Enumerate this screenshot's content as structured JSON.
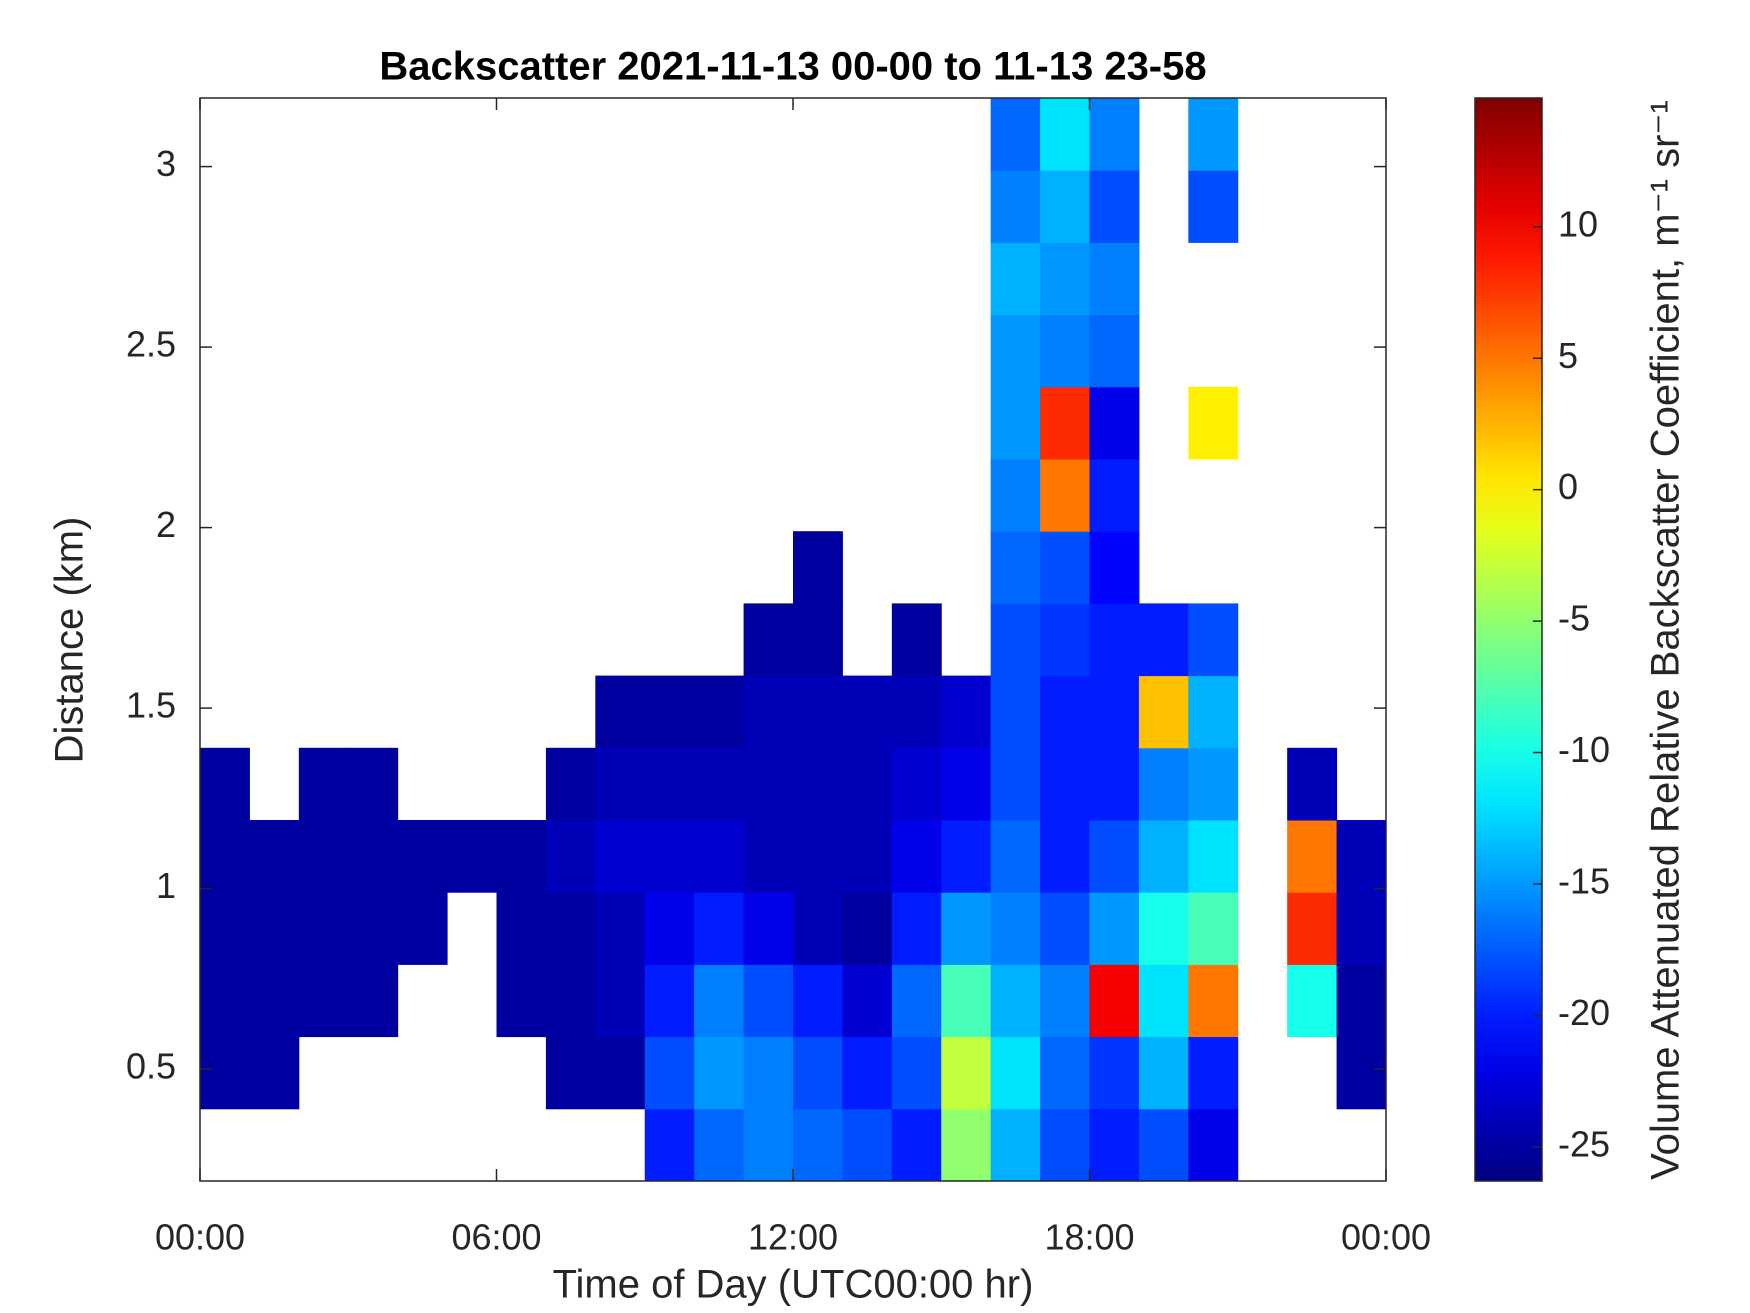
{
  "chart_data": {
    "type": "heatmap",
    "title": "Backscatter 2021-11-13 00-00 to 11-13 23-58",
    "xlabel": "Time of Day (UTC00:00 hr)",
    "ylabel": "Distance (km)",
    "colorbar_label": "Volume Attenuated Relative Backscatter Coefficient, m⁻¹ sr⁻¹",
    "colormap": "jet",
    "x_edges": [
      0,
      1,
      2,
      3,
      4,
      5,
      6,
      7,
      8,
      9,
      10,
      11,
      12,
      13,
      14,
      15,
      16,
      17,
      18,
      19,
      20,
      21,
      22,
      23,
      24
    ],
    "y_edges": [
      0.19,
      0.39,
      0.59,
      0.79,
      0.99,
      1.19,
      1.39,
      1.59,
      1.79,
      1.99,
      2.19,
      2.39,
      2.59,
      2.79,
      2.99,
      3.19
    ],
    "z": [
      [
        null,
        null,
        null,
        null,
        null,
        null,
        null,
        null,
        null,
        -20,
        -17,
        -16,
        -17,
        -18,
        -20,
        -5,
        -14,
        -18,
        -20,
        -18,
        -22,
        null,
        null,
        null
      ],
      [
        -25,
        -25,
        null,
        null,
        null,
        null,
        null,
        -25,
        -25,
        -18,
        -15,
        -16,
        -18,
        -20,
        -18,
        -3,
        -12,
        -17,
        -19,
        -14,
        -20,
        null,
        null,
        -25
      ],
      [
        -25,
        -25,
        -25,
        -25,
        null,
        null,
        -25,
        -25,
        -24,
        -20,
        -16,
        -18,
        -20,
        -23,
        -17,
        -8,
        -14,
        -16,
        10,
        -12,
        5,
        null,
        -10,
        -25
      ],
      [
        -25,
        -25,
        -25,
        -25,
        -25,
        null,
        -25,
        -25,
        -24,
        -22,
        -20,
        -22,
        -24,
        -25,
        -20,
        -15,
        -16,
        -18,
        -15,
        -10,
        -8,
        null,
        8,
        -24
      ],
      [
        -25,
        -25,
        -25,
        -25,
        -25,
        -25,
        -25,
        -24,
        -23,
        -23,
        -23,
        -24,
        -24,
        -24,
        -22,
        -20,
        -17,
        -20,
        -18,
        -14,
        -12,
        null,
        5,
        -24
      ],
      [
        -25,
        null,
        -25,
        -25,
        null,
        null,
        null,
        -25,
        -24,
        -24,
        -24,
        -24,
        -24,
        -24,
        -23,
        -22,
        -18,
        -20,
        -20,
        -16,
        -15,
        null,
        -24,
        null
      ],
      [
        null,
        null,
        null,
        null,
        null,
        null,
        null,
        null,
        -25,
        -25,
        -25,
        -24,
        -24,
        -24,
        -24,
        -23,
        -18,
        -20,
        -20,
        2,
        -14,
        null,
        null,
        null
      ],
      [
        null,
        null,
        null,
        null,
        null,
        null,
        null,
        null,
        null,
        null,
        null,
        -25,
        -25,
        null,
        -25,
        null,
        -18,
        -19,
        -20,
        -20,
        -18,
        null,
        null,
        null
      ],
      [
        null,
        null,
        null,
        null,
        null,
        null,
        null,
        null,
        null,
        null,
        null,
        null,
        -25,
        null,
        null,
        null,
        -17,
        -18,
        -21,
        null,
        null,
        null,
        null,
        null
      ],
      [
        null,
        null,
        null,
        null,
        null,
        null,
        null,
        null,
        null,
        null,
        null,
        null,
        null,
        null,
        null,
        null,
        -16,
        5,
        -20,
        null,
        null,
        null,
        null,
        null
      ],
      [
        null,
        null,
        null,
        null,
        null,
        null,
        null,
        null,
        null,
        null,
        null,
        null,
        null,
        null,
        null,
        null,
        -15,
        8,
        -22,
        null,
        0,
        null,
        null,
        null
      ],
      [
        null,
        null,
        null,
        null,
        null,
        null,
        null,
        null,
        null,
        null,
        null,
        null,
        null,
        null,
        null,
        null,
        -15,
        -16,
        -17,
        null,
        null,
        null,
        null,
        null
      ],
      [
        null,
        null,
        null,
        null,
        null,
        null,
        null,
        null,
        null,
        null,
        null,
        null,
        null,
        null,
        null,
        null,
        -14,
        -15,
        -16,
        null,
        null,
        null,
        null,
        null
      ],
      [
        null,
        null,
        null,
        null,
        null,
        null,
        null,
        null,
        null,
        null,
        null,
        null,
        null,
        null,
        null,
        null,
        -16,
        -14,
        -18,
        null,
        -18,
        null,
        null,
        null
      ],
      [
        null,
        null,
        null,
        null,
        null,
        null,
        null,
        null,
        null,
        null,
        null,
        null,
        null,
        null,
        null,
        null,
        -17,
        -12,
        -16,
        null,
        -15,
        null,
        null,
        null
      ]
    ],
    "xlim": [
      0,
      24
    ],
    "xticks": [
      {
        "value": 0,
        "label": "00:00"
      },
      {
        "value": 6,
        "label": "06:00"
      },
      {
        "value": 12,
        "label": "12:00"
      },
      {
        "value": 18,
        "label": "18:00"
      },
      {
        "value": 24,
        "label": "00:00"
      }
    ],
    "ylim": [
      0.19,
      3.19
    ],
    "yticks": [
      0.5,
      1,
      1.5,
      2,
      2.5,
      3
    ],
    "clim": [
      -26.3,
      14.9
    ],
    "cticks": [
      -25,
      -20,
      -15,
      -10,
      -5,
      0,
      5,
      10
    ]
  }
}
